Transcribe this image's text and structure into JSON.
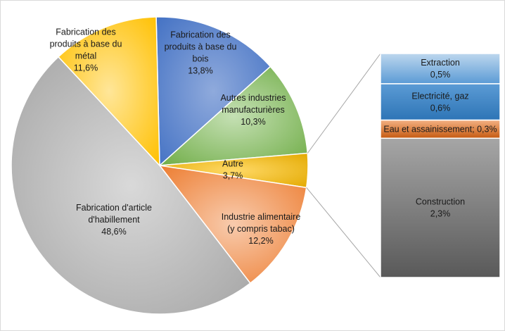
{
  "chart_data": {
    "type": "pie",
    "title": "",
    "colors": {
      "text": "#1a1a1a",
      "connector": "#a6a6a6"
    },
    "slices": [
      {
        "label": [
          "Fabrication des",
          "produits à base du",
          "bois"
        ],
        "value_label": "13,8%",
        "value": 13.8,
        "color": "#4472c4",
        "gradient_to": "#8faadc"
      },
      {
        "label": [
          "Autres industries",
          "manufacturières"
        ],
        "value_label": "10,3%",
        "value": 10.3,
        "color": "#70ad47",
        "gradient_to": "#c5e0b4"
      },
      {
        "label": [
          "Autre"
        ],
        "value_label": "3,7%",
        "value": 3.7,
        "color": "#e3a900",
        "gradient_to": "#ffd966"
      },
      {
        "label": [
          "Industrie alimentaire",
          "(y compris tabac)"
        ],
        "value_label": "12,2%",
        "value": 12.2,
        "color": "#ed7d31",
        "gradient_to": "#f8cbad"
      },
      {
        "label": [
          "Fabrication d'article",
          "d'habillement"
        ],
        "value_label": "48,6%",
        "value": 48.6,
        "color": "#a6a6a6",
        "gradient_to": "#d9d9d9"
      },
      {
        "label": [
          "Fabrication des",
          "produits à base du",
          "métal"
        ],
        "value_label": "11,6%",
        "value": 11.6,
        "color": "#ffc000",
        "gradient_to": "#ffe699"
      }
    ],
    "breakdown_of": "Autre",
    "breakdown": [
      {
        "label": "Extraction",
        "value_label": "0,5%",
        "value": 0.5,
        "color": "#5b9bd5",
        "gradient_to": "#bdd7ee"
      },
      {
        "label": "Electricité, gaz",
        "value_label": "0,6%",
        "value": 0.6,
        "color": "#2e75b6",
        "gradient_to": "#5b9bd5"
      },
      {
        "label": "Eau et assainissement; 0,3%",
        "value_label": "",
        "value": 0.3,
        "color": "#c55a11",
        "gradient_to": "#f4b183"
      },
      {
        "label": "Construction",
        "value_label": "2,3%",
        "value": 2.3,
        "color": "#595959",
        "gradient_to": "#a6a6a6"
      }
    ]
  }
}
